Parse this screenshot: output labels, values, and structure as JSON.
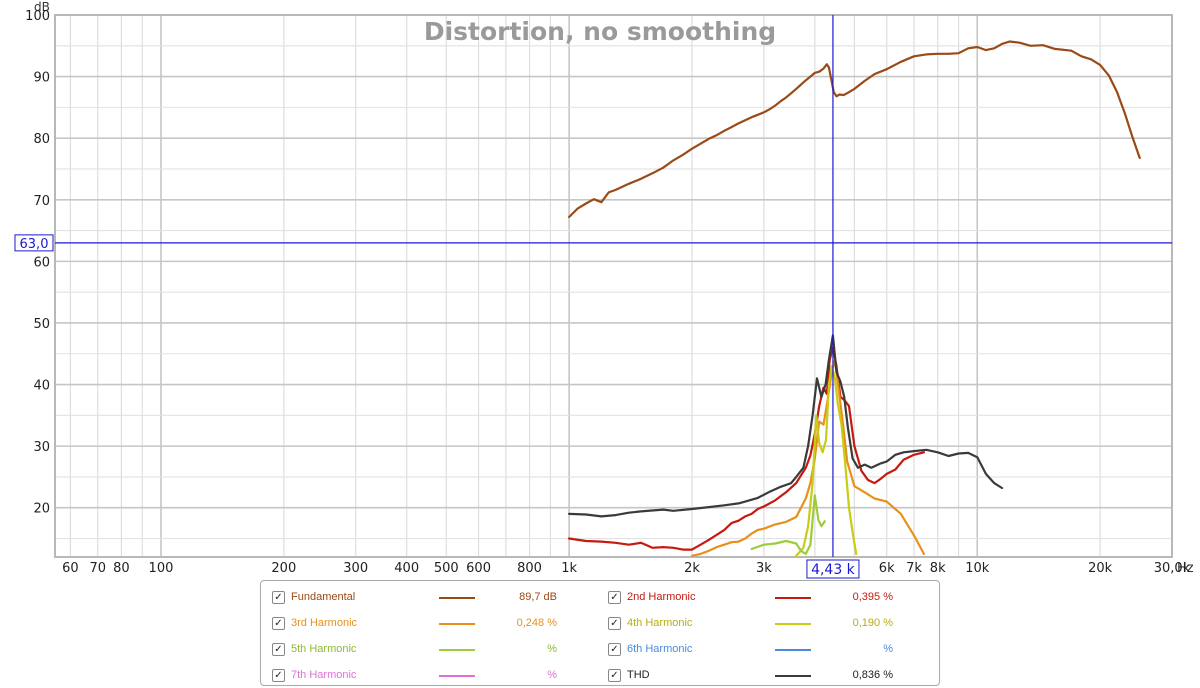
{
  "chart_data": {
    "type": "line",
    "title": "Distortion, no smoothing",
    "ylabel": "dB",
    "xlabel": "Hz",
    "x_scale": "log",
    "xlim": [
      55,
      30000
    ],
    "ylim": [
      12,
      100
    ],
    "x_ticks": [
      {
        "v": 60,
        "label": "60"
      },
      {
        "v": 70,
        "label": "70"
      },
      {
        "v": 80,
        "label": "80"
      },
      {
        "v": 100,
        "label": "100"
      },
      {
        "v": 200,
        "label": "200"
      },
      {
        "v": 300,
        "label": "300"
      },
      {
        "v": 400,
        "label": "400"
      },
      {
        "v": 500,
        "label": "500"
      },
      {
        "v": 600,
        "label": "600"
      },
      {
        "v": 800,
        "label": "800"
      },
      {
        "v": 1000,
        "label": "1k"
      },
      {
        "v": 2000,
        "label": "2k"
      },
      {
        "v": 3000,
        "label": "3k"
      },
      {
        "v": 6000,
        "label": "6k"
      },
      {
        "v": 7000,
        "label": "7k"
      },
      {
        "v": 8000,
        "label": "8k"
      },
      {
        "v": 10000,
        "label": "10k"
      },
      {
        "v": 20000,
        "label": "20k"
      },
      {
        "v": 30000,
        "label": "30,0k"
      }
    ],
    "y_ticks": [
      20,
      30,
      40,
      50,
      60,
      70,
      80,
      90,
      100
    ],
    "cursor": {
      "x": 4430,
      "y": 63.0,
      "x_label": "4,43 k",
      "y_label": "63,0"
    },
    "grid": true,
    "series": [
      {
        "name": "Fundamental",
        "color": "#9a4a18",
        "points": [
          [
            1000,
            67.2
          ],
          [
            1050,
            68.6
          ],
          [
            1100,
            69.4
          ],
          [
            1150,
            70.1
          ],
          [
            1200,
            69.6
          ],
          [
            1250,
            71.2
          ],
          [
            1300,
            71.6
          ],
          [
            1400,
            72.6
          ],
          [
            1500,
            73.4
          ],
          [
            1600,
            74.3
          ],
          [
            1700,
            75.2
          ],
          [
            1800,
            76.4
          ],
          [
            1900,
            77.3
          ],
          [
            2000,
            78.3
          ],
          [
            2100,
            79.1
          ],
          [
            2200,
            79.9
          ],
          [
            2300,
            80.5
          ],
          [
            2400,
            81.2
          ],
          [
            2500,
            81.8
          ],
          [
            2600,
            82.4
          ],
          [
            2700,
            82.9
          ],
          [
            2800,
            83.4
          ],
          [
            2900,
            83.8
          ],
          [
            3000,
            84.2
          ],
          [
            3100,
            84.7
          ],
          [
            3200,
            85.3
          ],
          [
            3300,
            86.0
          ],
          [
            3400,
            86.6
          ],
          [
            3500,
            87.3
          ],
          [
            3600,
            88.0
          ],
          [
            3700,
            88.7
          ],
          [
            3800,
            89.4
          ],
          [
            3900,
            90.0
          ],
          [
            4000,
            90.6
          ],
          [
            4100,
            90.8
          ],
          [
            4200,
            91.3
          ],
          [
            4280,
            92.0
          ],
          [
            4330,
            91.5
          ],
          [
            4400,
            89.2
          ],
          [
            4450,
            87.5
          ],
          [
            4520,
            86.8
          ],
          [
            4600,
            87.1
          ],
          [
            4700,
            87.0
          ],
          [
            4800,
            87.3
          ],
          [
            5000,
            88.0
          ],
          [
            5300,
            89.3
          ],
          [
            5600,
            90.4
          ],
          [
            6000,
            91.2
          ],
          [
            6500,
            92.4
          ],
          [
            7000,
            93.3
          ],
          [
            7500,
            93.6
          ],
          [
            8000,
            93.7
          ],
          [
            8500,
            93.7
          ],
          [
            9000,
            93.8
          ],
          [
            9500,
            94.6
          ],
          [
            10000,
            94.8
          ],
          [
            10500,
            94.3
          ],
          [
            11000,
            94.6
          ],
          [
            11500,
            95.3
          ],
          [
            12000,
            95.7
          ],
          [
            12700,
            95.5
          ],
          [
            13500,
            95.0
          ],
          [
            14500,
            95.1
          ],
          [
            15500,
            94.5
          ],
          [
            17000,
            94.2
          ],
          [
            18000,
            93.3
          ],
          [
            19000,
            92.8
          ],
          [
            20000,
            91.9
          ],
          [
            21000,
            90.2
          ],
          [
            22000,
            87.5
          ],
          [
            23000,
            84.0
          ],
          [
            24000,
            80.2
          ],
          [
            25000,
            76.8
          ]
        ]
      },
      {
        "name": "2nd Harmonic",
        "color": "#c41a10",
        "points": [
          [
            1000,
            15.0
          ],
          [
            1100,
            14.6
          ],
          [
            1200,
            14.5
          ],
          [
            1300,
            14.3
          ],
          [
            1400,
            14.0
          ],
          [
            1500,
            14.3
          ],
          [
            1600,
            13.5
          ],
          [
            1700,
            13.6
          ],
          [
            1800,
            13.5
          ],
          [
            1900,
            13.2
          ],
          [
            2000,
            13.2
          ],
          [
            2100,
            14.0
          ],
          [
            2200,
            14.8
          ],
          [
            2300,
            15.6
          ],
          [
            2400,
            16.4
          ],
          [
            2500,
            17.5
          ],
          [
            2600,
            17.9
          ],
          [
            2700,
            18.6
          ],
          [
            2800,
            19.0
          ],
          [
            2900,
            19.8
          ],
          [
            3000,
            20.2
          ],
          [
            3200,
            21.2
          ],
          [
            3400,
            22.5
          ],
          [
            3600,
            24.0
          ],
          [
            3800,
            26.5
          ],
          [
            3900,
            28.5
          ],
          [
            4000,
            32.0
          ],
          [
            4100,
            36.5
          ],
          [
            4200,
            39.5
          ],
          [
            4280,
            38.5
          ],
          [
            4350,
            44.0
          ],
          [
            4430,
            46.0
          ],
          [
            4520,
            43.0
          ],
          [
            4620,
            38.0
          ],
          [
            4720,
            37.5
          ],
          [
            4850,
            36.5
          ],
          [
            5000,
            30.0
          ],
          [
            5200,
            26.0
          ],
          [
            5400,
            24.5
          ],
          [
            5600,
            24.0
          ],
          [
            5800,
            24.7
          ],
          [
            6000,
            25.5
          ],
          [
            6300,
            26.2
          ],
          [
            6600,
            27.8
          ],
          [
            7000,
            28.6
          ],
          [
            7400,
            29.0
          ]
        ]
      },
      {
        "name": "3rd Harmonic",
        "color": "#e8901a",
        "points": [
          [
            2000,
            12.2
          ],
          [
            2100,
            12.5
          ],
          [
            2200,
            13.0
          ],
          [
            2300,
            13.6
          ],
          [
            2400,
            14.0
          ],
          [
            2500,
            14.4
          ],
          [
            2600,
            14.5
          ],
          [
            2700,
            15.0
          ],
          [
            2800,
            15.8
          ],
          [
            2900,
            16.4
          ],
          [
            3000,
            16.6
          ],
          [
            3200,
            17.3
          ],
          [
            3400,
            17.7
          ],
          [
            3600,
            18.5
          ],
          [
            3800,
            21.5
          ],
          [
            3900,
            24.0
          ],
          [
            4000,
            28.0
          ],
          [
            4100,
            34.0
          ],
          [
            4200,
            33.5
          ],
          [
            4300,
            37.5
          ],
          [
            4400,
            42.0
          ],
          [
            4480,
            44.0
          ],
          [
            4600,
            38.0
          ],
          [
            4700,
            33.0
          ],
          [
            4800,
            27.5
          ],
          [
            5000,
            23.5
          ],
          [
            5300,
            22.5
          ],
          [
            5600,
            21.5
          ],
          [
            6000,
            21.0
          ],
          [
            6500,
            19.0
          ],
          [
            7000,
            15.5
          ],
          [
            7400,
            12.5
          ]
        ]
      },
      {
        "name": "4th Harmonic",
        "color": "#c8cc14",
        "points": [
          [
            3600,
            12.2
          ],
          [
            3750,
            13.5
          ],
          [
            3850,
            17.0
          ],
          [
            3950,
            24.0
          ],
          [
            4030,
            35.0
          ],
          [
            4100,
            30.5
          ],
          [
            4180,
            29.0
          ],
          [
            4260,
            31.0
          ],
          [
            4330,
            40.0
          ],
          [
            4400,
            43.0
          ],
          [
            4480,
            41.0
          ],
          [
            4550,
            37.0
          ],
          [
            4650,
            33.5
          ],
          [
            4750,
            27.0
          ],
          [
            4850,
            20.0
          ],
          [
            4950,
            16.0
          ],
          [
            5050,
            12.5
          ]
        ]
      },
      {
        "name": "5th Harmonic",
        "color": "#9ccc3c",
        "points": [
          [
            2800,
            13.3
          ],
          [
            3000,
            14.0
          ],
          [
            3200,
            14.2
          ],
          [
            3400,
            14.6
          ],
          [
            3600,
            14.2
          ],
          [
            3700,
            13.0
          ],
          [
            3800,
            12.5
          ],
          [
            3900,
            14.0
          ],
          [
            4000,
            22.0
          ],
          [
            4080,
            18.0
          ],
          [
            4150,
            17.0
          ],
          [
            4230,
            17.8
          ]
        ]
      },
      {
        "name": "THD",
        "color": "#3a3a3a",
        "points": [
          [
            1000,
            19.0
          ],
          [
            1100,
            18.9
          ],
          [
            1200,
            18.6
          ],
          [
            1300,
            18.8
          ],
          [
            1400,
            19.2
          ],
          [
            1500,
            19.4
          ],
          [
            1700,
            19.7
          ],
          [
            1800,
            19.5
          ],
          [
            2000,
            19.8
          ],
          [
            2200,
            20.1
          ],
          [
            2400,
            20.4
          ],
          [
            2600,
            20.7
          ],
          [
            2700,
            21.0
          ],
          [
            2900,
            21.6
          ],
          [
            3100,
            22.6
          ],
          [
            3300,
            23.4
          ],
          [
            3500,
            24.0
          ],
          [
            3600,
            25.0
          ],
          [
            3750,
            26.5
          ],
          [
            3850,
            30.0
          ],
          [
            3950,
            35.0
          ],
          [
            4050,
            41.0
          ],
          [
            4150,
            38.0
          ],
          [
            4250,
            40.0
          ],
          [
            4330,
            44.0
          ],
          [
            4430,
            48.0
          ],
          [
            4520,
            42.0
          ],
          [
            4620,
            40.5
          ],
          [
            4720,
            38.0
          ],
          [
            4820,
            33.0
          ],
          [
            4950,
            28.0
          ],
          [
            5100,
            26.5
          ],
          [
            5300,
            27.0
          ],
          [
            5500,
            26.5
          ],
          [
            5800,
            27.2
          ],
          [
            6000,
            27.5
          ],
          [
            6300,
            28.6
          ],
          [
            6600,
            29.0
          ],
          [
            7000,
            29.2
          ],
          [
            7500,
            29.4
          ],
          [
            8000,
            29.0
          ],
          [
            8500,
            28.4
          ],
          [
            9000,
            28.8
          ],
          [
            9500,
            28.9
          ],
          [
            10000,
            28.2
          ],
          [
            10500,
            25.5
          ],
          [
            11000,
            24.0
          ],
          [
            11500,
            23.2
          ]
        ]
      }
    ]
  },
  "legend": {
    "rows": [
      [
        {
          "name": "Fundamental",
          "value": "89,7 dB",
          "color": "#9a4a18",
          "checked": "✓"
        },
        {
          "name": "2nd Harmonic",
          "value": "0,395 %",
          "color": "#c41a10",
          "checked": "✓"
        }
      ],
      [
        {
          "name": "3rd Harmonic",
          "value": "0,248 %",
          "color": "#e8901a",
          "checked": "✓"
        },
        {
          "name": "4th Harmonic",
          "value": "0,190 %",
          "color": "#c8cc14",
          "checked": "✓"
        }
      ],
      [
        {
          "name": "5th Harmonic",
          "value": "%",
          "color": "#9ccc3c",
          "checked": "✓"
        },
        {
          "name": "6th Harmonic",
          "value": "%",
          "color": "#4a8ad8",
          "checked": "✓"
        }
      ],
      [
        {
          "name": "7th Harmonic",
          "value": "%",
          "color": "#e070d8",
          "checked": "✓"
        },
        {
          "name": "THD",
          "value": "0,836 %",
          "color": "#3a3a3a",
          "checked": "✓",
          "text_color": "#222222"
        }
      ]
    ]
  }
}
